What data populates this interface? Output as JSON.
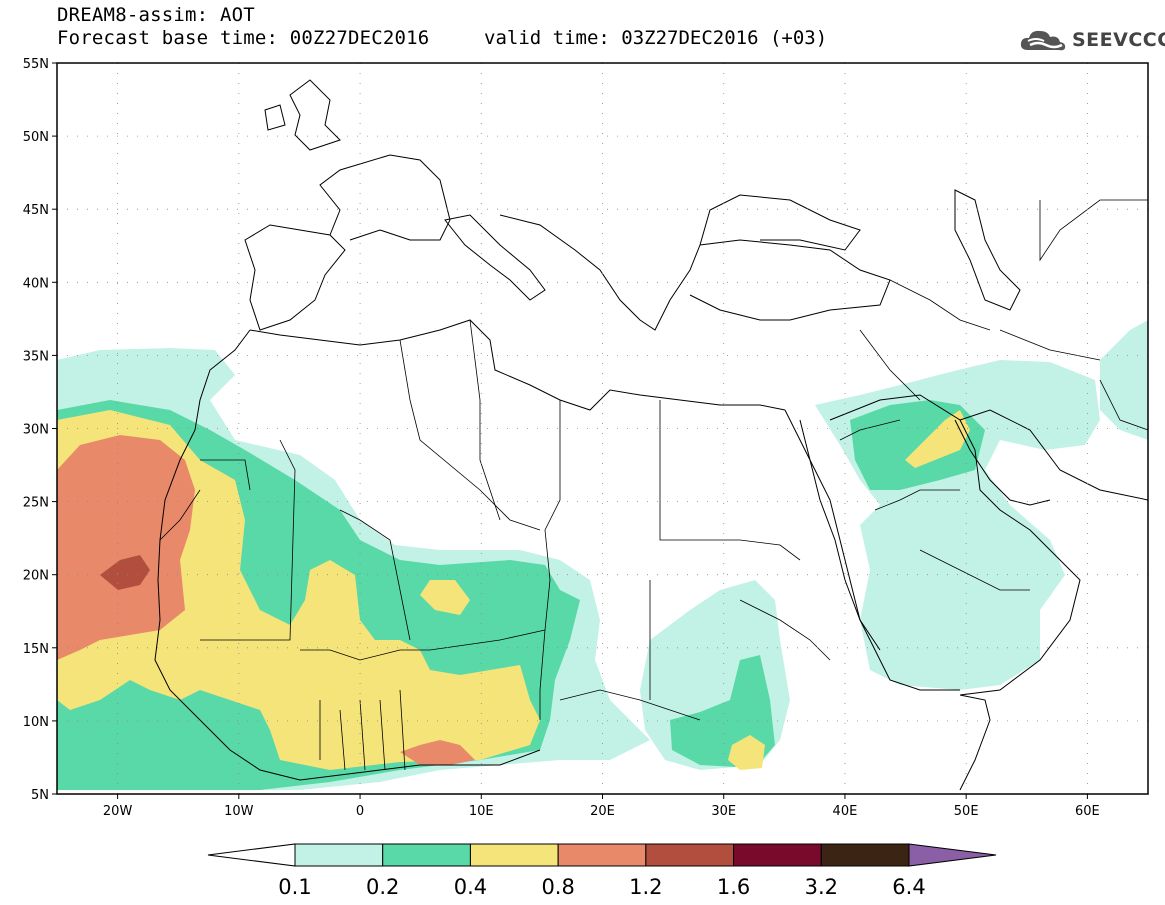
{
  "header": {
    "model_line": "DREAM8-assim: AOT",
    "base_time_line": "Forecast base time: 00Z27DEC2016",
    "valid_time_line": "valid time: 03Z27DEC2016 (+03)",
    "logo_text": "SEEVCCC",
    "logo_icon": "cloud-icon"
  },
  "map": {
    "lon_range": [
      -25,
      65
    ],
    "lat_range": [
      5,
      55
    ],
    "lat_ticks": [
      "55N",
      "50N",
      "45N",
      "40N",
      "35N",
      "30N",
      "25N",
      "20N",
      "15N",
      "10N",
      "5N"
    ],
    "lon_ticks": [
      "20W",
      "10W",
      "0",
      "10E",
      "20E",
      "30E",
      "40E",
      "50E",
      "60E"
    ],
    "lat_values": [
      55,
      50,
      45,
      40,
      35,
      30,
      25,
      20,
      15,
      10,
      5
    ],
    "lon_values": [
      -20,
      -10,
      0,
      10,
      20,
      30,
      40,
      50,
      60
    ],
    "grid": "dotted"
  },
  "colorbar": {
    "labels": [
      "0.1",
      "0.2",
      "0.4",
      "0.8",
      "1.2",
      "1.6",
      "3.2",
      "6.4"
    ],
    "colors": [
      "#ffffff",
      "#c2f2e6",
      "#5ad9a8",
      "#f5e47a",
      "#e8896a",
      "#b24e3e",
      "#7a0a2c",
      "#3b2414",
      "#8a5fa5"
    ]
  }
}
